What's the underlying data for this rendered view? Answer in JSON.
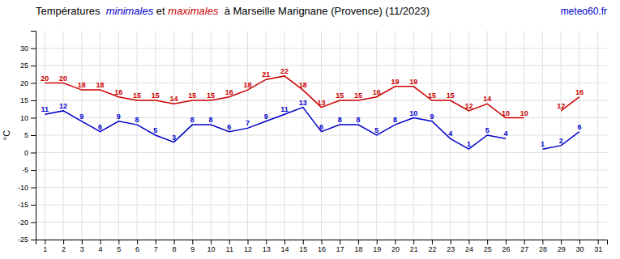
{
  "chart_data": {
    "type": "line",
    "title": [
      {
        "text": "Températures  "
      },
      {
        "text": "minimales",
        "color": "#0000cc"
      },
      {
        "text": " et "
      },
      {
        "text": "maximales",
        "color": "#cc0000"
      },
      {
        "text": "  à Marseille Marignane (Provence) (11/2023)"
      }
    ],
    "annotations": [
      {
        "text": "meteo60.fr",
        "color": "#0000cc"
      }
    ],
    "ylabel": "°C",
    "x": [
      1,
      2,
      3,
      4,
      5,
      6,
      7,
      8,
      9,
      10,
      11,
      12,
      13,
      14,
      15,
      16,
      17,
      18,
      19,
      20,
      21,
      22,
      23,
      24,
      25,
      26,
      27,
      28,
      29,
      30,
      31
    ],
    "series": [
      {
        "color": "#0000cc",
        "values": [
          11,
          12,
          9,
          6,
          9,
          8,
          5,
          3,
          8,
          8,
          6,
          7,
          9,
          11,
          13,
          6,
          8,
          8,
          5,
          8,
          10,
          9,
          4,
          1,
          5,
          4,
          null,
          1,
          2,
          6,
          null
        ]
      },
      {
        "color": "#cc0000",
        "values": [
          20,
          20,
          18,
          18,
          16,
          15,
          15,
          14,
          15,
          15,
          16,
          18,
          21,
          22,
          18,
          13,
          15,
          15,
          16,
          19,
          19,
          15,
          15,
          12,
          14,
          10,
          10,
          null,
          12,
          16,
          null
        ]
      }
    ],
    "xlim": [
      0.5,
      31.5
    ],
    "xticks": [
      1,
      2,
      3,
      4,
      5,
      6,
      7,
      8,
      9,
      10,
      11,
      12,
      13,
      14,
      15,
      16,
      17,
      18,
      19,
      20,
      21,
      22,
      23,
      24,
      25,
      26,
      27,
      28,
      29,
      30,
      31
    ],
    "ylim": [
      -25,
      35
    ],
    "yticks": [
      -25,
      -20,
      -15,
      -10,
      -5,
      0,
      5,
      10,
      15,
      20,
      25,
      30
    ],
    "grid": true,
    "data_labels": true
  }
}
